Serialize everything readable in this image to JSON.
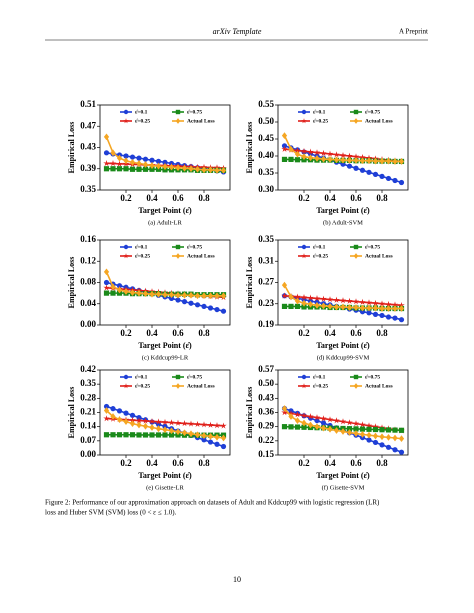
{
  "header": {
    "left": "arXiv Template",
    "right": "A Preprint"
  },
  "figure_caption": [
    "Figure 2: Performance of our approximation approach on datasets of Adult and Kddcup99 with logistic regression (LR)",
    "loss and Huber SVM (SVM) loss (0 < ε ≤ 1.0)."
  ],
  "page_number": "10",
  "chart_data": [
    {
      "type": "line",
      "caption": "(a) Adult-LR",
      "xlabel": "Target Point (ε̂)",
      "ylabel": "Empirical Loss",
      "x": [
        0.05,
        0.1,
        0.15,
        0.2,
        0.25,
        0.3,
        0.35,
        0.4,
        0.45,
        0.5,
        0.55,
        0.6,
        0.65,
        0.7,
        0.75,
        0.8,
        0.85,
        0.9,
        0.95
      ],
      "xlim": [
        0,
        1
      ],
      "xticks": [
        0.2,
        0.4,
        0.6,
        0.8
      ],
      "ylim": [
        0.35,
        0.51
      ],
      "yticks": [
        0.35,
        0.39,
        0.43,
        0.47,
        0.51
      ],
      "series": [
        {
          "name": "ε̂=0.1",
          "color": "#1f3fd6",
          "marker": "circle",
          "values": [
            0.42,
            0.418,
            0.416,
            0.414,
            0.412,
            0.41,
            0.408,
            0.406,
            0.404,
            0.402,
            0.4,
            0.398,
            0.396,
            0.394,
            0.392,
            0.39,
            0.388,
            0.386,
            0.384
          ]
        },
        {
          "name": "ε̂=0.25",
          "color": "#e0201b",
          "marker": "star",
          "values": [
            0.4,
            0.4,
            0.399,
            0.399,
            0.398,
            0.398,
            0.397,
            0.397,
            0.396,
            0.396,
            0.395,
            0.395,
            0.394,
            0.394,
            0.393,
            0.393,
            0.392,
            0.392,
            0.391
          ]
        },
        {
          "name": "ε̂=0.75",
          "color": "#1a8a1a",
          "marker": "square",
          "values": [
            0.39,
            0.39,
            0.39,
            0.39,
            0.389,
            0.389,
            0.389,
            0.389,
            0.389,
            0.388,
            0.388,
            0.388,
            0.388,
            0.388,
            0.387,
            0.387,
            0.387,
            0.387,
            0.387
          ]
        },
        {
          "name": "Actual Loss",
          "color": "#f5a623",
          "marker": "diamond",
          "values": [
            0.45,
            0.42,
            0.41,
            0.405,
            0.402,
            0.4,
            0.398,
            0.396,
            0.395,
            0.394,
            0.393,
            0.392,
            0.391,
            0.39,
            0.389,
            0.388,
            0.388,
            0.387,
            0.387
          ]
        }
      ]
    },
    {
      "type": "line",
      "caption": "(b) Adult-SVM",
      "xlabel": "Target Point (ε̂)",
      "ylabel": "Empirical Loss",
      "x": [
        0.05,
        0.1,
        0.15,
        0.2,
        0.25,
        0.3,
        0.35,
        0.4,
        0.45,
        0.5,
        0.55,
        0.6,
        0.65,
        0.7,
        0.75,
        0.8,
        0.85,
        0.9,
        0.95
      ],
      "xlim": [
        0,
        1
      ],
      "xticks": [
        0.2,
        0.4,
        0.6,
        0.8
      ],
      "ylim": [
        0.3,
        0.55
      ],
      "yticks": [
        {
          "value": 0.3,
          "label": "0.30"
        },
        0.35,
        {
          "value": 0.4,
          "label": "0.40"
        },
        0.45,
        {
          "value": 0.5,
          "label": "0.50"
        },
        0.55
      ],
      "series": [
        {
          "name": "ε̂=0.1",
          "color": "#1f3fd6",
          "marker": "circle",
          "values": [
            0.43,
            0.424,
            0.418,
            0.412,
            0.406,
            0.4,
            0.394,
            0.388,
            0.382,
            0.376,
            0.37,
            0.364,
            0.358,
            0.352,
            0.346,
            0.34,
            0.334,
            0.328,
            0.322
          ]
        },
        {
          "name": "ε̂=0.25",
          "color": "#e0201b",
          "marker": "star",
          "values": [
            0.42,
            0.418,
            0.416,
            0.414,
            0.412,
            0.41,
            0.408,
            0.406,
            0.404,
            0.402,
            0.4,
            0.398,
            0.396,
            0.394,
            0.392,
            0.39,
            0.388,
            0.386,
            0.384
          ]
        },
        {
          "name": "ε̂=0.75",
          "color": "#1a8a1a",
          "marker": "square",
          "values": [
            0.39,
            0.39,
            0.389,
            0.389,
            0.389,
            0.388,
            0.388,
            0.388,
            0.387,
            0.387,
            0.387,
            0.386,
            0.386,
            0.386,
            0.385,
            0.385,
            0.385,
            0.384,
            0.384
          ]
        },
        {
          "name": "Actual Loss",
          "color": "#f5a623",
          "marker": "diamond",
          "values": [
            0.46,
            0.42,
            0.405,
            0.398,
            0.395,
            0.393,
            0.391,
            0.39,
            0.389,
            0.388,
            0.387,
            0.387,
            0.386,
            0.386,
            0.385,
            0.385,
            0.385,
            0.384,
            0.384
          ]
        }
      ]
    },
    {
      "type": "line",
      "caption": "(c) Kddcup99-LR",
      "xlabel": "Target Point (ε̂)",
      "ylabel": "Empirical Loss",
      "x": [
        0.05,
        0.1,
        0.15,
        0.2,
        0.25,
        0.3,
        0.35,
        0.4,
        0.45,
        0.5,
        0.55,
        0.6,
        0.65,
        0.7,
        0.75,
        0.8,
        0.85,
        0.9,
        0.95
      ],
      "xlim": [
        0,
        1
      ],
      "xticks": [
        0.2,
        0.4,
        0.6,
        0.8
      ],
      "ylim": [
        0,
        0.16
      ],
      "yticks": [
        {
          "value": 0,
          "label": "0.00"
        },
        0.04,
        0.08,
        0.12,
        0.16
      ],
      "series": [
        {
          "name": "ε̂=0.1",
          "color": "#1f3fd6",
          "marker": "circle",
          "values": [
            0.08,
            0.077,
            0.074,
            0.071,
            0.068,
            0.065,
            0.062,
            0.059,
            0.056,
            0.053,
            0.05,
            0.047,
            0.044,
            0.041,
            0.038,
            0.035,
            0.032,
            0.029,
            0.026
          ]
        },
        {
          "name": "ε̂=0.25",
          "color": "#e0201b",
          "marker": "star",
          "values": [
            0.07,
            0.069,
            0.068,
            0.067,
            0.066,
            0.065,
            0.064,
            0.063,
            0.062,
            0.061,
            0.06,
            0.059,
            0.058,
            0.057,
            0.056,
            0.055,
            0.054,
            0.053,
            0.052
          ]
        },
        {
          "name": "ε̂=0.75",
          "color": "#1a8a1a",
          "marker": "square",
          "values": [
            0.06,
            0.06,
            0.06,
            0.06,
            0.059,
            0.059,
            0.059,
            0.059,
            0.059,
            0.058,
            0.058,
            0.058,
            0.058,
            0.058,
            0.057,
            0.057,
            0.057,
            0.057,
            0.057
          ]
        },
        {
          "name": "Actual Loss",
          "color": "#f5a623",
          "marker": "diamond",
          "values": [
            0.1,
            0.072,
            0.066,
            0.063,
            0.061,
            0.06,
            0.059,
            0.058,
            0.058,
            0.057,
            0.057,
            0.056,
            0.056,
            0.056,
            0.055,
            0.055,
            0.055,
            0.055,
            0.055
          ]
        }
      ]
    },
    {
      "type": "line",
      "caption": "(d) Kddcup99-SVM",
      "xlabel": "Target Point (ε̂)",
      "ylabel": "Empirical Loss",
      "x": [
        0.05,
        0.1,
        0.15,
        0.2,
        0.25,
        0.3,
        0.35,
        0.4,
        0.45,
        0.5,
        0.55,
        0.6,
        0.65,
        0.7,
        0.75,
        0.8,
        0.85,
        0.9,
        0.95
      ],
      "xlim": [
        0,
        1
      ],
      "xticks": [
        0.2,
        0.4,
        0.6,
        0.8
      ],
      "ylim": [
        0.19,
        0.35
      ],
      "yticks": [
        0.19,
        0.23,
        0.27,
        0.31,
        0.35
      ],
      "series": [
        {
          "name": "ε̂=0.1",
          "color": "#1f3fd6",
          "marker": "circle",
          "values": [
            0.245,
            0.243,
            0.24,
            0.238,
            0.235,
            0.233,
            0.23,
            0.228,
            0.225,
            0.223,
            0.22,
            0.218,
            0.215,
            0.213,
            0.21,
            0.208,
            0.205,
            0.203,
            0.2
          ]
        },
        {
          "name": "ε̂=0.25",
          "color": "#e0201b",
          "marker": "star",
          "values": [
            0.245,
            0.244,
            0.243,
            0.242,
            0.241,
            0.24,
            0.239,
            0.238,
            0.237,
            0.236,
            0.235,
            0.234,
            0.233,
            0.232,
            0.231,
            0.23,
            0.229,
            0.228,
            0.227
          ]
        },
        {
          "name": "ε̂=0.75",
          "color": "#1a8a1a",
          "marker": "square",
          "values": [
            0.225,
            0.225,
            0.225,
            0.224,
            0.224,
            0.224,
            0.224,
            0.223,
            0.223,
            0.223,
            0.223,
            0.222,
            0.222,
            0.222,
            0.222,
            0.221,
            0.221,
            0.221,
            0.221
          ]
        },
        {
          "name": "Actual Loss",
          "color": "#f5a623",
          "marker": "diamond",
          "values": [
            0.265,
            0.243,
            0.235,
            0.231,
            0.229,
            0.227,
            0.226,
            0.225,
            0.224,
            0.224,
            0.223,
            0.223,
            0.222,
            0.222,
            0.222,
            0.221,
            0.221,
            0.221,
            0.221
          ]
        }
      ]
    },
    {
      "type": "line",
      "caption": "(e) Gisette-LR",
      "xlabel": "Target Point (ε̂)",
      "ylabel": "Empirical Loss",
      "x": [
        0.05,
        0.1,
        0.15,
        0.2,
        0.25,
        0.3,
        0.35,
        0.4,
        0.45,
        0.5,
        0.55,
        0.6,
        0.65,
        0.7,
        0.75,
        0.8,
        0.85,
        0.9,
        0.95
      ],
      "xlim": [
        0,
        1
      ],
      "xticks": [
        0.2,
        0.4,
        0.6,
        0.8
      ],
      "ylim": [
        0,
        0.42
      ],
      "yticks": [
        {
          "value": 0,
          "label": "0.00"
        },
        0.07,
        0.14,
        0.21,
        0.28,
        0.35,
        0.42
      ],
      "series": [
        {
          "name": "ε̂=0.1",
          "color": "#1f3fd6",
          "marker": "circle",
          "values": [
            0.24,
            0.229,
            0.218,
            0.207,
            0.196,
            0.185,
            0.174,
            0.163,
            0.152,
            0.141,
            0.13,
            0.119,
            0.108,
            0.097,
            0.086,
            0.075,
            0.064,
            0.053,
            0.042
          ]
        },
        {
          "name": "ε̂=0.25",
          "color": "#e0201b",
          "marker": "star",
          "values": [
            0.18,
            0.178,
            0.176,
            0.174,
            0.172,
            0.17,
            0.168,
            0.166,
            0.164,
            0.162,
            0.16,
            0.158,
            0.156,
            0.154,
            0.152,
            0.15,
            0.148,
            0.146,
            0.144
          ]
        },
        {
          "name": "ε̂=0.75",
          "color": "#1a8a1a",
          "marker": "square",
          "values": [
            0.1,
            0.1,
            0.1,
            0.1,
            0.1,
            0.099,
            0.099,
            0.099,
            0.099,
            0.099,
            0.099,
            0.099,
            0.098,
            0.098,
            0.098,
            0.098,
            0.098,
            0.098,
            0.098
          ]
        },
        {
          "name": "Actual Loss",
          "color": "#f5a623",
          "marker": "diamond",
          "values": [
            0.22,
            0.19,
            0.175,
            0.165,
            0.155,
            0.148,
            0.142,
            0.136,
            0.13,
            0.125,
            0.12,
            0.115,
            0.11,
            0.105,
            0.1,
            0.096,
            0.092,
            0.088,
            0.084
          ]
        }
      ]
    },
    {
      "type": "line",
      "caption": "(f) Gisette-SVM",
      "xlabel": "Target Point (ε̂)",
      "ylabel": "Empirical Loss",
      "x": [
        0.05,
        0.1,
        0.15,
        0.2,
        0.25,
        0.3,
        0.35,
        0.4,
        0.45,
        0.5,
        0.55,
        0.6,
        0.65,
        0.7,
        0.75,
        0.8,
        0.85,
        0.9,
        0.95
      ],
      "xlim": [
        0,
        1
      ],
      "xticks": [
        0.2,
        0.4,
        0.6,
        0.8
      ],
      "ylim": [
        0.15,
        0.57
      ],
      "yticks": [
        0.15,
        0.22,
        0.29,
        0.36,
        0.43,
        {
          "value": 0.5,
          "label": "0.50"
        },
        0.57
      ],
      "series": [
        {
          "name": "ε̂=0.1",
          "color": "#1f3fd6",
          "marker": "circle",
          "values": [
            0.38,
            0.368,
            0.356,
            0.344,
            0.332,
            0.32,
            0.308,
            0.296,
            0.284,
            0.272,
            0.26,
            0.248,
            0.236,
            0.224,
            0.212,
            0.2,
            0.188,
            0.176,
            0.164
          ]
        },
        {
          "name": "ε̂=0.25",
          "color": "#e0201b",
          "marker": "star",
          "values": [
            0.36,
            0.355,
            0.35,
            0.345,
            0.34,
            0.335,
            0.33,
            0.325,
            0.32,
            0.315,
            0.31,
            0.305,
            0.3,
            0.295,
            0.29,
            0.285,
            0.28,
            0.275,
            0.27
          ]
        },
        {
          "name": "ε̂=0.75",
          "color": "#1a8a1a",
          "marker": "square",
          "values": [
            0.29,
            0.289,
            0.288,
            0.287,
            0.286,
            0.285,
            0.284,
            0.283,
            0.282,
            0.281,
            0.28,
            0.279,
            0.278,
            0.277,
            0.276,
            0.275,
            0.274,
            0.273,
            0.272
          ]
        },
        {
          "name": "Actual Loss",
          "color": "#f5a623",
          "marker": "diamond",
          "values": [
            0.38,
            0.34,
            0.32,
            0.308,
            0.298,
            0.29,
            0.283,
            0.277,
            0.271,
            0.266,
            0.261,
            0.256,
            0.252,
            0.248,
            0.244,
            0.24,
            0.237,
            0.234,
            0.231
          ]
        }
      ]
    }
  ]
}
